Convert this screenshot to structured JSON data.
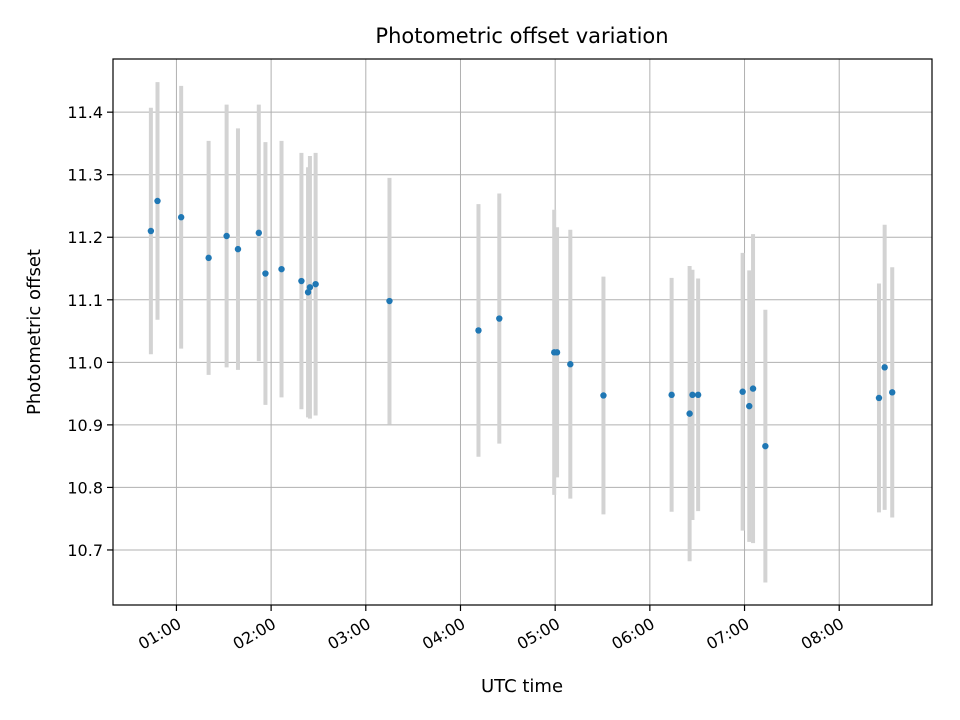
{
  "chart_data": {
    "type": "scatter",
    "title": "Photometric offset variation",
    "xlabel": "UTC time",
    "ylabel": "Photometric offset",
    "x_unit": "hours (UTC)",
    "xlim": [
      0.33,
      8.98
    ],
    "ylim": [
      10.612,
      11.485
    ],
    "x_ticks": [
      {
        "value": 1,
        "label": "01:00"
      },
      {
        "value": 2,
        "label": "02:00"
      },
      {
        "value": 3,
        "label": "03:00"
      },
      {
        "value": 4,
        "label": "04:00"
      },
      {
        "value": 5,
        "label": "05:00"
      },
      {
        "value": 6,
        "label": "06:00"
      },
      {
        "value": 7,
        "label": "07:00"
      },
      {
        "value": 8,
        "label": "08:00"
      }
    ],
    "y_ticks": [
      {
        "value": 10.7,
        "label": "10.7"
      },
      {
        "value": 10.8,
        "label": "10.8"
      },
      {
        "value": 10.9,
        "label": "10.9"
      },
      {
        "value": 11.0,
        "label": "11.0"
      },
      {
        "value": 11.1,
        "label": "11.1"
      },
      {
        "value": 11.2,
        "label": "11.2"
      },
      {
        "value": 11.3,
        "label": "11.3"
      },
      {
        "value": 11.4,
        "label": "11.4"
      }
    ],
    "grid": true,
    "marker_color": "#1f77b4",
    "errorbar_color": "#d3d3d3",
    "points": [
      {
        "x": 0.73,
        "y": 11.21,
        "err": 0.197
      },
      {
        "x": 0.8,
        "y": 11.258,
        "err": 0.19
      },
      {
        "x": 1.05,
        "y": 11.232,
        "err": 0.21
      },
      {
        "x": 1.34,
        "y": 11.167,
        "err": 0.187
      },
      {
        "x": 1.53,
        "y": 11.202,
        "err": 0.21
      },
      {
        "x": 1.65,
        "y": 11.181,
        "err": 0.193
      },
      {
        "x": 1.87,
        "y": 11.207,
        "err": 0.205
      },
      {
        "x": 1.94,
        "y": 11.142,
        "err": 0.21
      },
      {
        "x": 2.11,
        "y": 11.149,
        "err": 0.205
      },
      {
        "x": 2.32,
        "y": 11.13,
        "err": 0.205
      },
      {
        "x": 2.39,
        "y": 11.112,
        "err": 0.2
      },
      {
        "x": 2.41,
        "y": 11.12,
        "err": 0.21
      },
      {
        "x": 2.47,
        "y": 11.125,
        "err": 0.21
      },
      {
        "x": 3.25,
        "y": 11.098,
        "err": 0.197
      },
      {
        "x": 4.19,
        "y": 11.051,
        "err": 0.202
      },
      {
        "x": 4.41,
        "y": 11.07,
        "err": 0.2
      },
      {
        "x": 4.99,
        "y": 11.016,
        "err": 0.228
      },
      {
        "x": 5.02,
        "y": 11.016,
        "err": 0.2
      },
      {
        "x": 5.16,
        "y": 10.997,
        "err": 0.215
      },
      {
        "x": 5.51,
        "y": 10.947,
        "err": 0.19
      },
      {
        "x": 6.23,
        "y": 10.948,
        "err": 0.187
      },
      {
        "x": 6.42,
        "y": 10.918,
        "err": 0.236
      },
      {
        "x": 6.45,
        "y": 10.948,
        "err": 0.2
      },
      {
        "x": 6.51,
        "y": 10.948,
        "err": 0.186
      },
      {
        "x": 6.98,
        "y": 10.953,
        "err": 0.222
      },
      {
        "x": 7.05,
        "y": 10.93,
        "err": 0.217
      },
      {
        "x": 7.09,
        "y": 10.958,
        "err": 0.247
      },
      {
        "x": 7.22,
        "y": 10.866,
        "err": 0.218
      },
      {
        "x": 8.42,
        "y": 10.943,
        "err": 0.183
      },
      {
        "x": 8.48,
        "y": 10.992,
        "err": 0.228
      },
      {
        "x": 8.56,
        "y": 10.952,
        "err": 0.2
      }
    ]
  }
}
